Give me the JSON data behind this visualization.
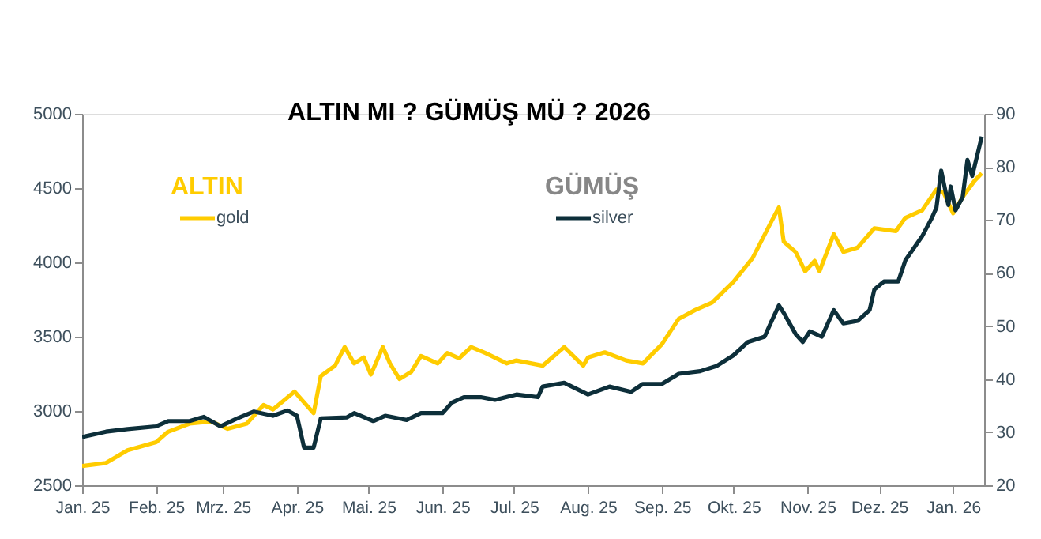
{
  "chart_data": {
    "type": "line",
    "title": "ALTIN MI ? GÜMÜŞ MÜ ?  2026",
    "annotations": [
      "ALTIN",
      "GÜMÜŞ"
    ],
    "xlim": [
      "2025-01-01",
      "2026-01-14"
    ],
    "xticks": [
      {
        "value": "2025-01-01",
        "label": "Jan. 25"
      },
      {
        "value": "2025-02-01",
        "label": "Feb. 25"
      },
      {
        "value": "2025-03-01",
        "label": "Mrz. 25"
      },
      {
        "value": "2025-04-01",
        "label": "Apr. 25"
      },
      {
        "value": "2025-05-01",
        "label": "Mai. 25"
      },
      {
        "value": "2025-06-01",
        "label": "Jun. 25"
      },
      {
        "value": "2025-07-01",
        "label": "Jul. 25"
      },
      {
        "value": "2025-08-01",
        "label": "Aug. 25"
      },
      {
        "value": "2025-09-01",
        "label": "Sep. 25"
      },
      {
        "value": "2025-10-01",
        "label": "Okt. 25"
      },
      {
        "value": "2025-11-01",
        "label": "Nov. 25"
      },
      {
        "value": "2025-12-01",
        "label": "Dez. 25"
      },
      {
        "value": "2026-01-01",
        "label": "Jan. 26"
      }
    ],
    "ylim": [
      2500,
      5000
    ],
    "yticks": [
      2500,
      3000,
      3500,
      4000,
      4500,
      5000
    ],
    "y2lim": [
      20,
      90
    ],
    "y2ticks": [
      20,
      30,
      40,
      50,
      60,
      70,
      80,
      90
    ],
    "grid": false,
    "legend": "top",
    "line_style": "solid",
    "series": [
      {
        "name": "gold",
        "color": "#ffcc00",
        "x": [
          "2025-01-01",
          "2025-01-11",
          "2025-01-20",
          "2025-02-01",
          "2025-02-06",
          "2025-02-15",
          "2025-02-24",
          "2025-03-03",
          "2025-03-11",
          "2025-03-18",
          "2025-03-22",
          "2025-03-31",
          "2025-04-08",
          "2025-04-11",
          "2025-04-17",
          "2025-04-21",
          "2025-04-25",
          "2025-04-29",
          "2025-05-02",
          "2025-05-07",
          "2025-05-10",
          "2025-05-14",
          "2025-05-19",
          "2025-05-23",
          "2025-05-30",
          "2025-06-03",
          "2025-06-08",
          "2025-06-13",
          "2025-06-19",
          "2025-06-28",
          "2025-07-02",
          "2025-07-13",
          "2025-07-22",
          "2025-07-30",
          "2025-08-01",
          "2025-08-08",
          "2025-08-17",
          "2025-08-24",
          "2025-09-01",
          "2025-09-08",
          "2025-09-15",
          "2025-09-22",
          "2025-10-01",
          "2025-10-09",
          "2025-10-17",
          "2025-10-20",
          "2025-10-22",
          "2025-10-27",
          "2025-10-31",
          "2025-11-04",
          "2025-11-06",
          "2025-11-12",
          "2025-11-16",
          "2025-11-22",
          "2025-11-29",
          "2025-12-08",
          "2025-12-12",
          "2025-12-19",
          "2025-12-25",
          "2025-12-28",
          "2026-01-01",
          "2026-01-05",
          "2026-01-10",
          "2026-01-13"
        ],
        "values": [
          2630,
          2650,
          2735,
          2790,
          2860,
          2915,
          2930,
          2880,
          2915,
          3040,
          3010,
          3130,
          2985,
          3235,
          3305,
          3430,
          3320,
          3360,
          3245,
          3430,
          3320,
          3215,
          3265,
          3370,
          3320,
          3390,
          3355,
          3430,
          3390,
          3320,
          3340,
          3305,
          3430,
          3305,
          3360,
          3395,
          3340,
          3320,
          3450,
          3620,
          3680,
          3730,
          3870,
          4030,
          4280,
          4370,
          4140,
          4070,
          3940,
          4010,
          3940,
          4190,
          4070,
          4100,
          4230,
          4210,
          4300,
          4350,
          4490,
          4470,
          4330,
          4440,
          4550,
          4600
        ]
      },
      {
        "name": "silver",
        "color": "#0d2f3a",
        "axis": "y2",
        "x": [
          "2025-01-01",
          "2025-01-11",
          "2025-01-20",
          "2025-02-01",
          "2025-02-06",
          "2025-02-15",
          "2025-02-21",
          "2025-02-28",
          "2025-03-07",
          "2025-03-14",
          "2025-03-22",
          "2025-03-28",
          "2025-04-01",
          "2025-04-04",
          "2025-04-08",
          "2025-04-11",
          "2025-04-22",
          "2025-04-25",
          "2025-05-03",
          "2025-05-08",
          "2025-05-17",
          "2025-05-23",
          "2025-06-01",
          "2025-06-05",
          "2025-06-10",
          "2025-06-17",
          "2025-06-23",
          "2025-07-02",
          "2025-07-11",
          "2025-07-13",
          "2025-07-22",
          "2025-08-01",
          "2025-08-10",
          "2025-08-19",
          "2025-08-24",
          "2025-09-01",
          "2025-09-08",
          "2025-09-17",
          "2025-09-24",
          "2025-10-01",
          "2025-10-07",
          "2025-10-14",
          "2025-10-17",
          "2025-10-20",
          "2025-10-22",
          "2025-10-27",
          "2025-10-30",
          "2025-11-02",
          "2025-11-07",
          "2025-11-12",
          "2025-11-16",
          "2025-11-22",
          "2025-11-27",
          "2025-11-29",
          "2025-12-03",
          "2025-12-09",
          "2025-12-12",
          "2025-12-19",
          "2025-12-23",
          "2025-12-25",
          "2025-12-27",
          "2025-12-30",
          "2025-12-31",
          "2026-01-02",
          "2026-01-05",
          "2026-01-07",
          "2026-01-09",
          "2026-01-13"
        ],
        "values": [
          29.1,
          30.1,
          30.6,
          31.1,
          32.1,
          32.1,
          32.9,
          31.1,
          32.6,
          33.9,
          33.1,
          34.1,
          33.1,
          27.1,
          27.1,
          32.6,
          32.8,
          33.6,
          32.1,
          33.1,
          32.3,
          33.6,
          33.6,
          35.6,
          36.6,
          36.6,
          36.1,
          37.1,
          36.6,
          38.6,
          39.3,
          37.1,
          38.6,
          37.6,
          39.1,
          39.1,
          41.0,
          41.5,
          42.5,
          44.5,
          47.0,
          48.0,
          51.0,
          53.9,
          52.5,
          48.5,
          47.0,
          49.0,
          48.0,
          53.0,
          50.5,
          51.0,
          53.0,
          56.9,
          58.4,
          58.4,
          62.4,
          66.9,
          70.3,
          72.3,
          79.3,
          72.8,
          76.3,
          71.8,
          74.3,
          81.3,
          78.3,
          85.7
        ]
      }
    ]
  }
}
